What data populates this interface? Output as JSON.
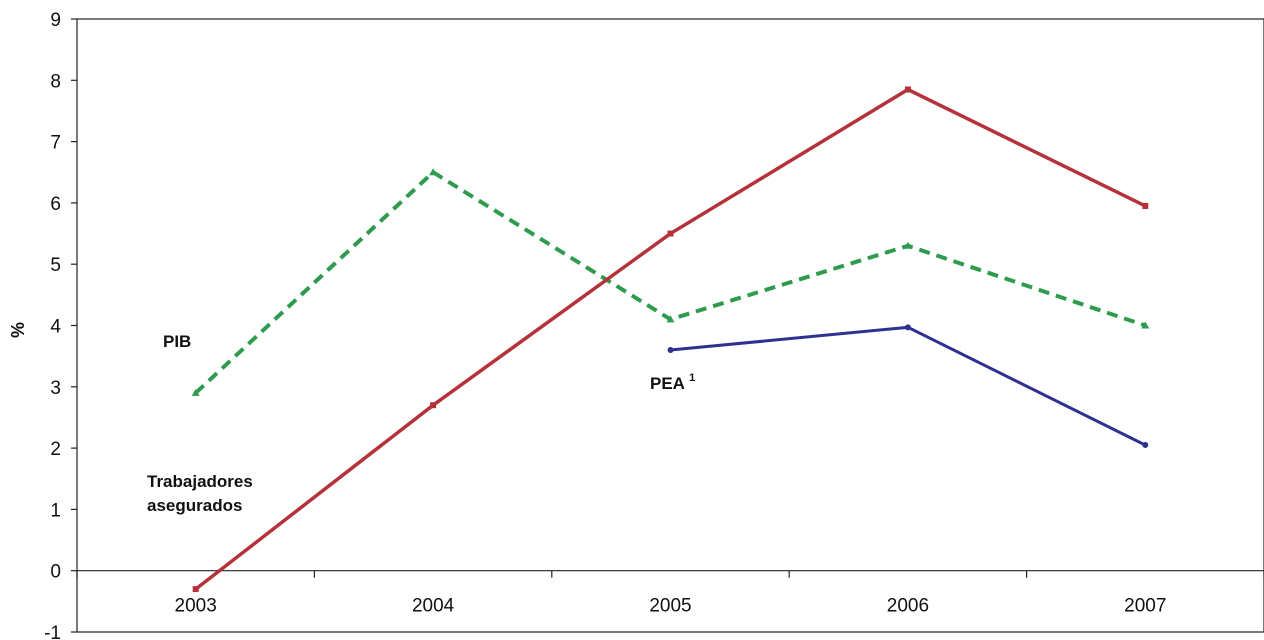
{
  "chart_data": {
    "type": "line",
    "title": "",
    "xlabel": "",
    "ylabel": "%",
    "ylim": [
      -1,
      9
    ],
    "yticks": [
      "-1",
      "0",
      "1",
      "2",
      "3",
      "4",
      "5",
      "6",
      "7",
      "8",
      "9"
    ],
    "categories": [
      "2003",
      "2004",
      "2005",
      "2006",
      "2007"
    ],
    "grid": false,
    "series": [
      {
        "name": "PIB",
        "style": "dashed",
        "color": "#2e9b4e",
        "marker": "triangle",
        "values": [
          2.9,
          6.5,
          4.1,
          5.3,
          4.0
        ]
      },
      {
        "name": "Trabajadores asegurados",
        "style": "solid",
        "color": "#b5323a",
        "marker": "square",
        "values": [
          -0.3,
          2.7,
          5.5,
          7.85,
          5.95
        ]
      },
      {
        "name": "PEA",
        "name_superscript": "1",
        "style": "solid",
        "color": "#2e3192",
        "marker": "circle",
        "values": [
          null,
          null,
          3.6,
          3.97,
          2.05
        ]
      }
    ],
    "annotations": {
      "pib": "PIB",
      "trabajadores_line1": "Trabajadores",
      "trabajadores_line2": "asegurados",
      "pea": "PEA",
      "pea_sup": "1"
    }
  }
}
